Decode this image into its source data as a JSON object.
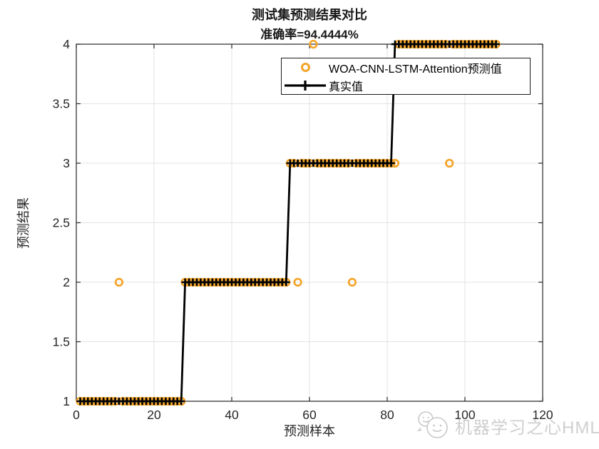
{
  "figure": {
    "title": "测试集预测结果对比",
    "subtitle": "准确率=94.4444%"
  },
  "axis": {
    "tick_color": "#262626",
    "grid_color": "#e3e3e3",
    "background": "#ffffff"
  },
  "watermark": {
    "text": "机器学习之心HML",
    "icon": "wechat-face-icon",
    "color": "#c9c9c9"
  },
  "chart_data": {
    "type": "line",
    "title": "测试集预测结果对比",
    "subtitle": "准确率=94.4444%",
    "xlabel": "预测样本",
    "ylabel": "预测结果",
    "xlim": [
      0,
      120
    ],
    "ylim": [
      1,
      4
    ],
    "xticks": [
      0,
      20,
      40,
      60,
      80,
      100,
      120
    ],
    "yticks": [
      1,
      1.5,
      2,
      2.5,
      3,
      3.5,
      4
    ],
    "grid": true,
    "legend_position": "north-inside",
    "n_samples": 108,
    "x_start": 1,
    "misclassified_samples": [
      11,
      57,
      61,
      71,
      82,
      96
    ],
    "accuracy_percent": 94.4444,
    "series": [
      {
        "name": "WOA-CNN-LSTM-Attention预测值",
        "type": "scatter",
        "marker": "o",
        "color": "#F4A428",
        "values": [
          1,
          1,
          1,
          1,
          1,
          1,
          1,
          1,
          1,
          1,
          2,
          1,
          1,
          1,
          1,
          1,
          1,
          1,
          1,
          1,
          1,
          1,
          1,
          1,
          1,
          1,
          1,
          2,
          2,
          2,
          2,
          2,
          2,
          2,
          2,
          2,
          2,
          2,
          2,
          2,
          2,
          2,
          2,
          2,
          2,
          2,
          2,
          2,
          2,
          2,
          2,
          2,
          2,
          2,
          3,
          3,
          2,
          3,
          3,
          3,
          4,
          3,
          3,
          3,
          3,
          3,
          3,
          3,
          3,
          3,
          2,
          3,
          3,
          3,
          3,
          3,
          3,
          3,
          3,
          3,
          3,
          3,
          4,
          4,
          4,
          4,
          4,
          4,
          4,
          4,
          4,
          4,
          4,
          4,
          4,
          3,
          4,
          4,
          4,
          4,
          4,
          4,
          4,
          4,
          4,
          4,
          4,
          4
        ]
      },
      {
        "name": "真实值",
        "type": "line",
        "marker": "+",
        "color": "#000000",
        "values": [
          1,
          1,
          1,
          1,
          1,
          1,
          1,
          1,
          1,
          1,
          1,
          1,
          1,
          1,
          1,
          1,
          1,
          1,
          1,
          1,
          1,
          1,
          1,
          1,
          1,
          1,
          1,
          2,
          2,
          2,
          2,
          2,
          2,
          2,
          2,
          2,
          2,
          2,
          2,
          2,
          2,
          2,
          2,
          2,
          2,
          2,
          2,
          2,
          2,
          2,
          2,
          2,
          2,
          2,
          3,
          3,
          3,
          3,
          3,
          3,
          3,
          3,
          3,
          3,
          3,
          3,
          3,
          3,
          3,
          3,
          3,
          3,
          3,
          3,
          3,
          3,
          3,
          3,
          3,
          3,
          3,
          4,
          4,
          4,
          4,
          4,
          4,
          4,
          4,
          4,
          4,
          4,
          4,
          4,
          4,
          4,
          4,
          4,
          4,
          4,
          4,
          4,
          4,
          4,
          4,
          4,
          4,
          4
        ]
      }
    ]
  }
}
